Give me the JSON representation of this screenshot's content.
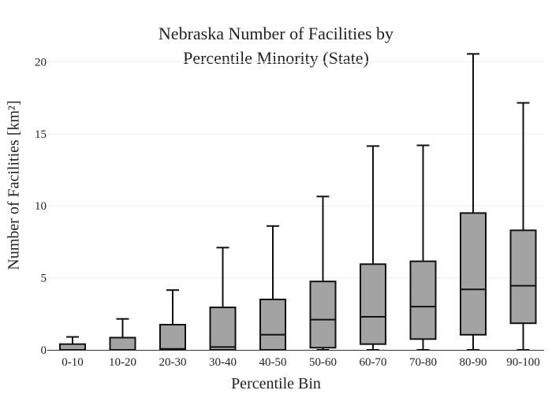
{
  "chart_data": {
    "type": "box",
    "title": [
      "Nebraska Number of Facilities by",
      "Percentile Minority (State)"
    ],
    "xlabel": "Percentile Bin",
    "ylabel": "Number of Facilities  [km²]",
    "ylim": [
      0,
      20.9
    ],
    "yticks": [
      0,
      5,
      10,
      15,
      20
    ],
    "grid": true,
    "categories": [
      "0-10",
      "10-20",
      "20-30",
      "30-40",
      "40-50",
      "50-60",
      "60-70",
      "70-80",
      "80-90",
      "90-100"
    ],
    "boxes": [
      {
        "category": "0-10",
        "min": 0,
        "q1": 0,
        "median": 0,
        "q3": 0.4,
        "max": 0.9
      },
      {
        "category": "10-20",
        "min": 0,
        "q1": 0,
        "median": 0,
        "q3": 0.85,
        "max": 2.15
      },
      {
        "category": "20-30",
        "min": 0,
        "q1": 0,
        "median": 0.07,
        "q3": 1.75,
        "max": 4.15
      },
      {
        "category": "30-40",
        "min": 0,
        "q1": 0,
        "median": 0.2,
        "q3": 2.95,
        "max": 7.1
      },
      {
        "category": "40-50",
        "min": 0,
        "q1": 0,
        "median": 1.05,
        "q3": 3.5,
        "max": 8.6
      },
      {
        "category": "50-60",
        "min": 0,
        "q1": 0.15,
        "median": 2.1,
        "q3": 4.75,
        "max": 10.65
      },
      {
        "category": "60-70",
        "min": 0,
        "q1": 0.4,
        "median": 2.3,
        "q3": 5.95,
        "max": 14.15
      },
      {
        "category": "70-80",
        "min": 0,
        "q1": 0.75,
        "median": 3.0,
        "q3": 6.15,
        "max": 14.2
      },
      {
        "category": "80-90",
        "min": 0,
        "q1": 1.05,
        "median": 4.2,
        "q3": 9.5,
        "max": 20.55
      },
      {
        "category": "90-100",
        "min": 0,
        "q1": 1.85,
        "median": 4.45,
        "q3": 8.3,
        "max": 17.15
      }
    ],
    "colors": {
      "box_fill": "#a3a3a3",
      "stroke": "#111111",
      "grid": "#eeeeee",
      "axis": "#333333"
    }
  }
}
